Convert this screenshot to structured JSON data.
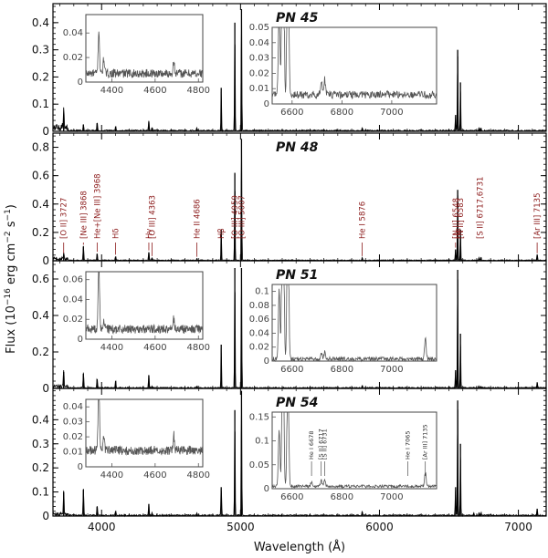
{
  "chart_data": {
    "type": "line",
    "figure": "Optical spectra of four planetary nebulae",
    "xlabel": "Wavelength (Å)",
    "ylabel": "Flux (10^-16 erg cm^-2 s^-1)",
    "ylabel_parts": {
      "prefix": "Flux (10",
      "exp1": "−16",
      "mid": " erg cm",
      "exp2": "−2",
      "mid2": " s",
      "exp3": "−1",
      "suffix": ")"
    },
    "xlim": [
      3650,
      7200
    ],
    "xticks": [
      "4000",
      "5000",
      "6000",
      "7000"
    ],
    "xtick_values": [
      4000,
      5000,
      6000,
      7000
    ],
    "panels": [
      {
        "title": "PN 45",
        "ylim": [
          0,
          0.47
        ],
        "yticks": [
          "0",
          "0.1",
          "0.2",
          "0.3",
          "0.4"
        ],
        "ytick_values": [
          0,
          0.1,
          0.2,
          0.3,
          0.4
        ],
        "noise": 0.005,
        "edge_rise": 0.05,
        "lines": [
          {
            "wl": 3727,
            "flux": 0.06
          },
          {
            "wl": 3869,
            "flux": 0.025
          },
          {
            "wl": 3968,
            "flux": 0.03
          },
          {
            "wl": 4101,
            "flux": 0.018
          },
          {
            "wl": 4340,
            "flux": 0.035
          },
          {
            "wl": 4363,
            "flux": 0.012
          },
          {
            "wl": 4686,
            "flux": 0.01
          },
          {
            "wl": 4861,
            "flux": 0.16
          },
          {
            "wl": 4959,
            "flux": 0.4
          },
          {
            "wl": 5007,
            "flux": 0.45
          },
          {
            "wl": 5876,
            "flux": 0.012
          },
          {
            "wl": 6548,
            "flux": 0.06
          },
          {
            "wl": 6563,
            "flux": 0.3
          },
          {
            "wl": 6583,
            "flux": 0.18
          },
          {
            "wl": 6717,
            "flux": 0.01
          },
          {
            "wl": 6731,
            "flux": 0.01
          }
        ],
        "insets": [
          {
            "xlim": [
              4280,
              4820
            ],
            "ylim": [
              0,
              0.055
            ],
            "xticks": [
              "4400",
              "4600",
              "4800"
            ],
            "xtick_values": [
              4400,
              4600,
              4800
            ],
            "yticks": [
              "0",
              "0.02",
              "0.04"
            ],
            "ytick_values": [
              0,
              0.02,
              0.04
            ],
            "noise": 0.0035,
            "base": 0.007
          },
          {
            "xlim": [
              6520,
              7180
            ],
            "ylim": [
              0,
              0.05
            ],
            "xticks": [
              "6600",
              "6800",
              "7000"
            ],
            "xtick_values": [
              6600,
              6800,
              7000
            ],
            "yticks": [
              "0",
              "0.01",
              "0.02",
              "0.03",
              "0.04",
              "0.05"
            ],
            "ytick_values": [
              0,
              0.01,
              0.02,
              0.03,
              0.04,
              0.05
            ],
            "noise": 0.0025,
            "base": 0.006
          }
        ]
      },
      {
        "title": "PN 48",
        "ylim": [
          0,
          0.9
        ],
        "yticks": [
          "0",
          "0.2",
          "0.4",
          "0.6",
          "0.8"
        ],
        "ytick_values": [
          0,
          0.2,
          0.4,
          0.6,
          0.8
        ],
        "noise": 0.007,
        "edge_rise": 0.04,
        "lines": [
          {
            "wl": 3727,
            "flux": 0.04
          },
          {
            "wl": 3869,
            "flux": 0.1
          },
          {
            "wl": 3968,
            "flux": 0.05
          },
          {
            "wl": 4101,
            "flux": 0.03
          },
          {
            "wl": 4340,
            "flux": 0.06
          },
          {
            "wl": 4363,
            "flux": 0.02
          },
          {
            "wl": 4686,
            "flux": 0.015
          },
          {
            "wl": 4861,
            "flux": 0.22
          },
          {
            "wl": 4959,
            "flux": 0.62
          },
          {
            "wl": 5007,
            "flux": 0.86
          },
          {
            "wl": 5876,
            "flux": 0.02
          },
          {
            "wl": 6548,
            "flux": 0.08
          },
          {
            "wl": 6563,
            "flux": 0.5
          },
          {
            "wl": 6583,
            "flux": 0.22
          },
          {
            "wl": 6717,
            "flux": 0.02
          },
          {
            "wl": 6731,
            "flux": 0.02
          },
          {
            "wl": 7135,
            "flux": 0.04
          }
        ],
        "labels": [
          {
            "wl": 3727,
            "text": "[O II]  3727"
          },
          {
            "wl": 3869,
            "text": "[Ne III]  3868"
          },
          {
            "wl": 3968,
            "text": "He+[Ne III]  3968"
          },
          {
            "wl": 4101,
            "text": "Hδ"
          },
          {
            "wl": 4340,
            "text": "Hγ"
          },
          {
            "wl": 4363,
            "text": "[O III]  4363"
          },
          {
            "wl": 4686,
            "text": "He II  4686"
          },
          {
            "wl": 4861,
            "text": "Hβ"
          },
          {
            "wl": 4959,
            "text": "[O III]  4959"
          },
          {
            "wl": 5007,
            "text": "[O III]  5007"
          },
          {
            "wl": 5876,
            "text": "He I  5876"
          },
          {
            "wl": 6548,
            "text": "[N II]  6548"
          },
          {
            "wl": 6563,
            "text": "Hα"
          },
          {
            "wl": 6583,
            "text": "[N II]  6583"
          },
          {
            "wl": 6724,
            "text": "[S II]  6717,6731"
          },
          {
            "wl": 7135,
            "text": "[Ar III]  7135"
          }
        ]
      },
      {
        "title": "PN 51",
        "ylim": [
          0,
          0.7
        ],
        "yticks": [
          "0",
          "0.2",
          "0.4",
          "0.6"
        ],
        "ytick_values": [
          0,
          0.2,
          0.4,
          0.6
        ],
        "noise": 0.007,
        "edge_rise": 0.03,
        "lines": [
          {
            "wl": 3727,
            "flux": 0.09
          },
          {
            "wl": 3869,
            "flux": 0.08
          },
          {
            "wl": 3968,
            "flux": 0.05
          },
          {
            "wl": 4101,
            "flux": 0.04
          },
          {
            "wl": 4340,
            "flux": 0.07
          },
          {
            "wl": 4363,
            "flux": 0.01
          },
          {
            "wl": 4686,
            "flux": 0.01
          },
          {
            "wl": 4861,
            "flux": 0.24
          },
          {
            "wl": 4959,
            "flux": 0.66
          },
          {
            "wl": 5007,
            "flux": 0.66
          },
          {
            "wl": 5876,
            "flux": 0.015
          },
          {
            "wl": 6548,
            "flux": 0.1
          },
          {
            "wl": 6563,
            "flux": 0.65
          },
          {
            "wl": 6583,
            "flux": 0.3
          },
          {
            "wl": 6717,
            "flux": 0.01
          },
          {
            "wl": 6731,
            "flux": 0.01
          },
          {
            "wl": 7135,
            "flux": 0.03
          }
        ],
        "insets": [
          {
            "xlim": [
              4280,
              4820
            ],
            "ylim": [
              0,
              0.068
            ],
            "xticks": [
              "4400",
              "4600",
              "4800"
            ],
            "xtick_values": [
              4400,
              4600,
              4800
            ],
            "yticks": [
              "0",
              "0.02",
              "0.04",
              "0.06"
            ],
            "ytick_values": [
              0,
              0.02,
              0.04,
              0.06
            ],
            "noise": 0.0045,
            "base": 0.01
          },
          {
            "xlim": [
              6520,
              7180
            ],
            "ylim": [
              0,
              0.11
            ],
            "xticks": [
              "6600",
              "6800",
              "7000"
            ],
            "xtick_values": [
              6600,
              6800,
              7000
            ],
            "yticks": [
              "0",
              "0.02",
              "0.04",
              "0.06",
              "0.08",
              "0.1"
            ],
            "ytick_values": [
              0,
              0.02,
              0.04,
              0.06,
              0.08,
              0.1
            ],
            "noise": 0.003,
            "base": 0.003
          }
        ]
      },
      {
        "title": "PN 54",
        "ylim": [
          0,
          0.53
        ],
        "yticks": [
          "0",
          "0.1",
          "0.2",
          "0.3",
          "0.4"
        ],
        "ytick_values": [
          0,
          0.1,
          0.2,
          0.3,
          0.4
        ],
        "noise": 0.006,
        "edge_rise": 0.02,
        "lines": [
          {
            "wl": 3727,
            "flux": 0.1
          },
          {
            "wl": 3869,
            "flux": 0.11
          },
          {
            "wl": 3968,
            "flux": 0.04
          },
          {
            "wl": 4101,
            "flux": 0.02
          },
          {
            "wl": 4340,
            "flux": 0.05
          },
          {
            "wl": 4363,
            "flux": 0.01
          },
          {
            "wl": 4686,
            "flux": 0.01
          },
          {
            "wl": 4861,
            "flux": 0.12
          },
          {
            "wl": 4959,
            "flux": 0.44
          },
          {
            "wl": 5007,
            "flux": 0.52
          },
          {
            "wl": 5876,
            "flux": 0.015
          },
          {
            "wl": 6548,
            "flux": 0.12
          },
          {
            "wl": 6563,
            "flux": 0.48
          },
          {
            "wl": 6583,
            "flux": 0.3
          },
          {
            "wl": 6678,
            "flux": 0.01
          },
          {
            "wl": 6717,
            "flux": 0.012
          },
          {
            "wl": 6731,
            "flux": 0.012
          },
          {
            "wl": 7135,
            "flux": 0.03
          }
        ],
        "insets": [
          {
            "xlim": [
              4280,
              4820
            ],
            "ylim": [
              0,
              0.045
            ],
            "xticks": [
              "4400",
              "4600",
              "4800"
            ],
            "xtick_values": [
              4400,
              4600,
              4800
            ],
            "yticks": [
              "0",
              "0.01",
              "0.02",
              "0.03",
              "0.04"
            ],
            "ytick_values": [
              0,
              0.01,
              0.02,
              0.03,
              0.04
            ],
            "noise": 0.003,
            "base": 0.011
          },
          {
            "xlim": [
              6520,
              7180
            ],
            "ylim": [
              0,
              0.16
            ],
            "xticks": [
              "6600",
              "6800",
              "7000"
            ],
            "xtick_values": [
              6600,
              6800,
              7000
            ],
            "yticks": [
              "0",
              "0.05",
              "0.1",
              "0.15"
            ],
            "ytick_values": [
              0,
              0.05,
              0.1,
              0.15
            ],
            "noise": 0.003,
            "base": 0.005,
            "annotations": [
              {
                "wl": 6678,
                "text": "He I  6678"
              },
              {
                "wl": 6717,
                "text": "[S II]  6717"
              },
              {
                "wl": 6731,
                "text": "[S II]  6731"
              },
              {
                "wl": 7065,
                "text": "He I  7065"
              },
              {
                "wl": 7135,
                "text": "[Ar III]  7135"
              }
            ]
          }
        ]
      }
    ]
  }
}
